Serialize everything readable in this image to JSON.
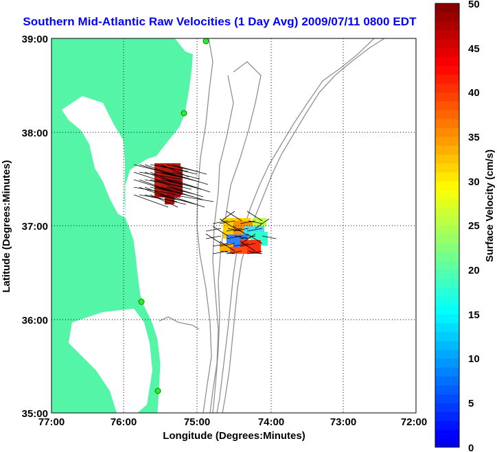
{
  "title": "Southern Mid-Atlantic Raw Velocities (1 Day Avg) 2009/07/11 0800 EDT",
  "map": {
    "xlabel": "Longitude (Degrees:Minutes)",
    "ylabel": "Latitude (Degrees:Minutes)",
    "lon_range": [
      -77,
      -72
    ],
    "lat_range": [
      35,
      39
    ],
    "lon_ticks": [
      "77:00",
      "76:00",
      "75:00",
      "74:00",
      "73:00",
      "72:00"
    ],
    "lat_ticks": [
      "39:00",
      "38:00",
      "37:00",
      "36:00",
      "35:00"
    ],
    "grid": true,
    "land_color": "#55f5a8",
    "contour_color": "#909090"
  },
  "colorbar": {
    "label": "Surface Velocity (cm/s)",
    "min": 0,
    "max": 50,
    "ticks": [
      "50",
      "45",
      "40",
      "35",
      "30",
      "25",
      "20",
      "15",
      "10",
      "5",
      "0"
    ]
  }
}
